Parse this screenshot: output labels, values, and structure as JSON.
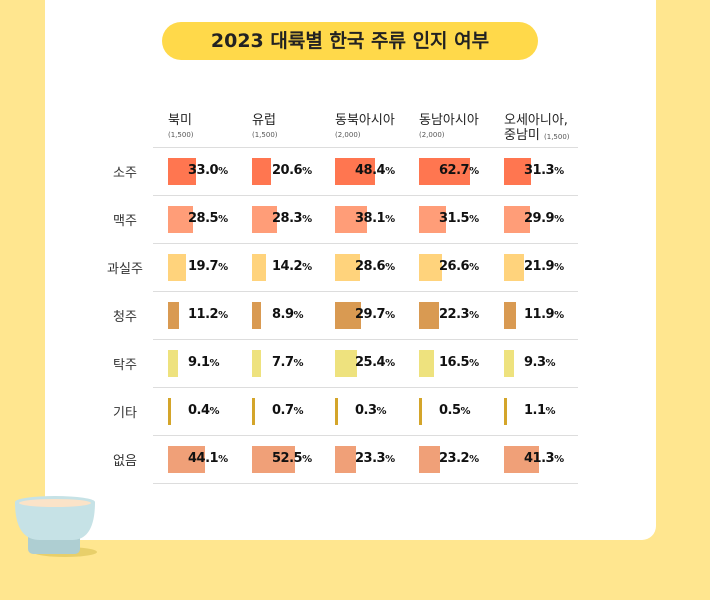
{
  "title": "2023 대륙별 한국 주류 인지 여부",
  "chart_data": {
    "type": "table",
    "title": "2023 대륙별 한국 주류 인지 여부",
    "columns": [
      {
        "name": "북미",
        "n": "(1,500)"
      },
      {
        "name": "유럽",
        "n": "(1,500)"
      },
      {
        "name": "동북아시아",
        "n": "(2,000)"
      },
      {
        "name": "동남아시아",
        "n": "(2,000)"
      },
      {
        "name": "오세아니아, 중남미",
        "n": "(1,500)"
      }
    ],
    "rows": [
      {
        "label": "소주",
        "color": "#FF7650",
        "values": [
          33.0,
          20.6,
          48.4,
          62.7,
          31.3
        ]
      },
      {
        "label": "맥주",
        "color": "#FF9D78",
        "values": [
          28.5,
          28.3,
          38.1,
          31.5,
          29.9
        ]
      },
      {
        "label": "과실주",
        "color": "#FFD37C",
        "values": [
          19.7,
          14.2,
          28.6,
          26.6,
          21.9
        ]
      },
      {
        "label": "청주",
        "color": "#D99A52",
        "values": [
          11.2,
          8.9,
          29.7,
          22.3,
          11.9
        ]
      },
      {
        "label": "탁주",
        "color": "#EEE27E",
        "values": [
          9.1,
          7.7,
          25.4,
          16.5,
          9.3
        ]
      },
      {
        "label": "기타",
        "color": "#D4A52A",
        "values": [
          0.4,
          0.7,
          0.3,
          0.5,
          1.1
        ]
      },
      {
        "label": "없음",
        "color": "#F0A078",
        "values": [
          44.1,
          52.5,
          23.3,
          23.2,
          41.3
        ]
      }
    ],
    "unit": "%"
  }
}
